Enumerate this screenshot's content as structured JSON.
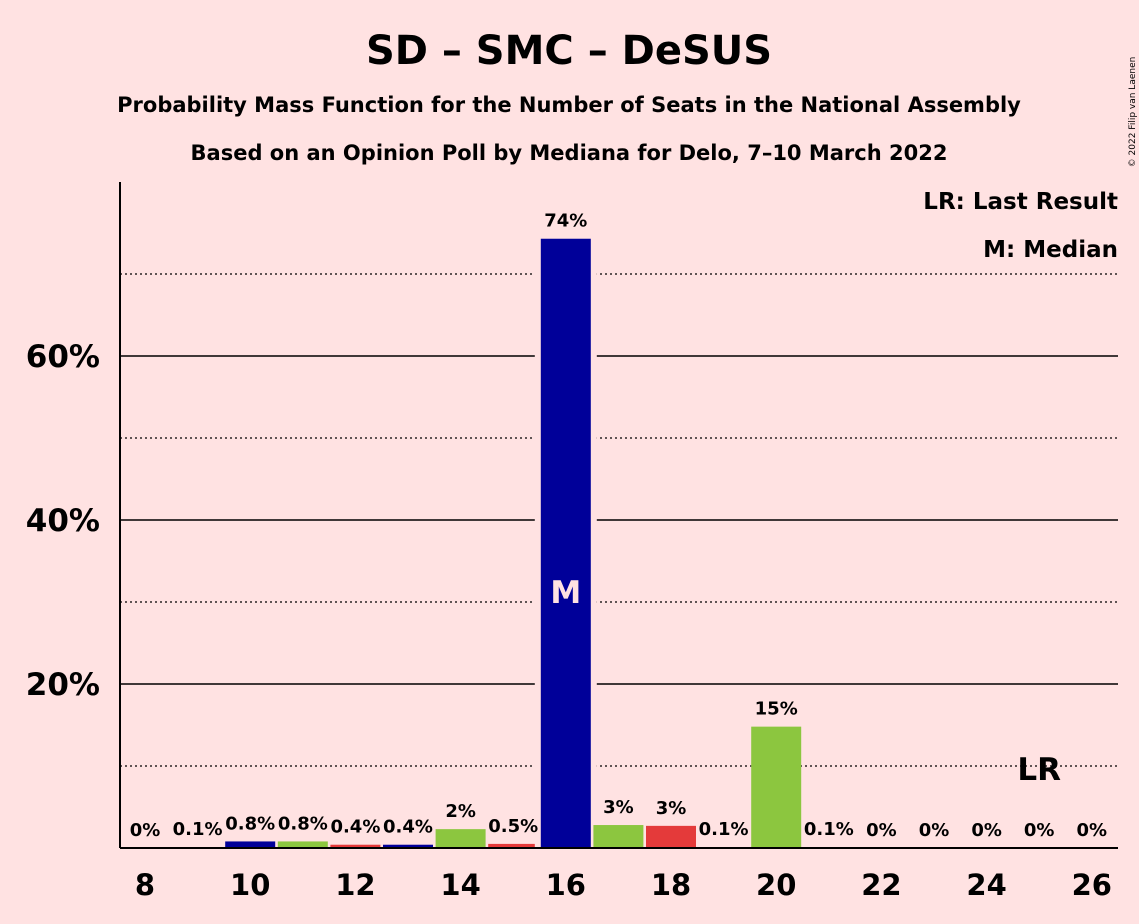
{
  "title": "SD – SMC – DeSUS",
  "subtitle1": "Probability Mass Function for the Number of Seats in the National Assembly",
  "subtitle2": "Based on an Opinion Poll by Mediana for Delo, 7–10 March 2022",
  "copyright": "© 2022 Filip van Laenen",
  "legend": {
    "last_result": "LR: Last Result",
    "median": "M: Median"
  },
  "colors": {
    "background": "#FFE2E2",
    "SD": "#000099",
    "SMC": "#E43A3A",
    "DeSUS": "#8CC63F"
  },
  "chart_data": {
    "type": "bar",
    "title": "SD – SMC – DeSUS",
    "xlabel": "",
    "ylabel": "",
    "ylim": [
      0,
      81
    ],
    "y_ticks": [
      20,
      40,
      60
    ],
    "y_tick_labels": [
      "20%",
      "40%",
      "60%"
    ],
    "y_minor_gridlines": [
      10,
      30,
      50,
      70
    ],
    "x_tick_labels": [
      "8",
      "10",
      "12",
      "14",
      "16",
      "18",
      "20",
      "22",
      "24",
      "26"
    ],
    "x_ticks": [
      8,
      10,
      12,
      14,
      16,
      18,
      20,
      22,
      24,
      26
    ],
    "seats": [
      8,
      9,
      10,
      11,
      12,
      13,
      14,
      15,
      16,
      17,
      18,
      19,
      20,
      21,
      22,
      23,
      24,
      25,
      26
    ],
    "values": [
      0,
      0.1,
      0.8,
      0.8,
      0.4,
      0.4,
      2.3,
      0.5,
      74.3,
      2.8,
      2.7,
      0.1,
      14.8,
      0.1,
      0,
      0,
      0,
      0,
      0
    ],
    "labels": [
      "0%",
      "0.1%",
      "0.8%",
      "0.8%",
      "0.4%",
      "0.4%",
      "2%",
      "0.5%",
      "74%",
      "3%",
      "3%",
      "0.1%",
      "15%",
      "0.1%",
      "0%",
      "0%",
      "0%",
      "0%",
      "0%"
    ],
    "bar_colors": [
      "#000099",
      "#000099",
      "#000099",
      "#8CC63F",
      "#E43A3A",
      "#000099",
      "#8CC63F",
      "#E43A3A",
      "#000099",
      "#8CC63F",
      "#E43A3A",
      "#8CC63F",
      "#8CC63F",
      "#8CC63F",
      "#8CC63F",
      "#8CC63F",
      "#8CC63F",
      "#8CC63F",
      "#8CC63F"
    ],
    "median_seat": 16,
    "median_marker": "M",
    "last_result_seat": 25,
    "last_result_marker": "LR",
    "grid": true
  }
}
